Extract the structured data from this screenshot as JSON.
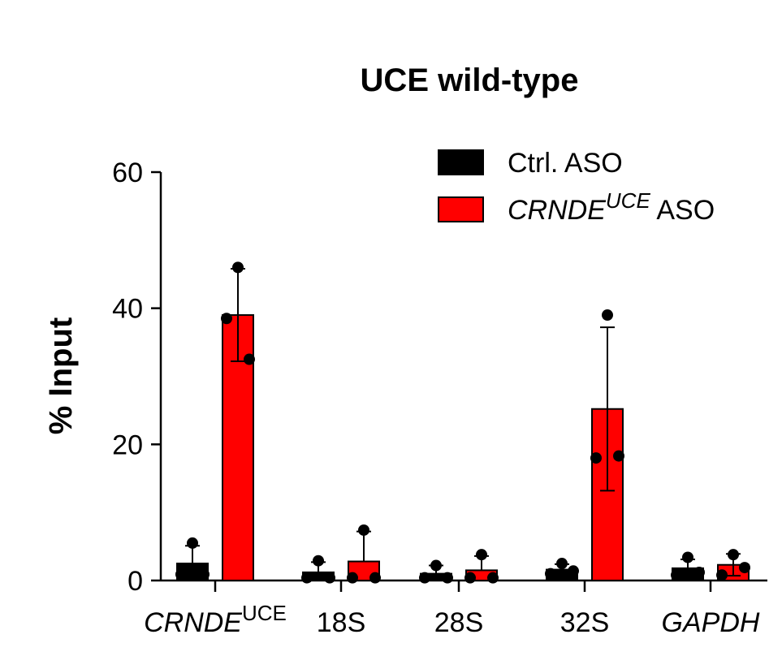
{
  "chart_data": {
    "type": "bar",
    "title": "UCE wild-type",
    "xlabel": "",
    "ylabel": "% Input",
    "ylim": [
      0,
      60
    ],
    "yticks": [
      "0",
      "20",
      "40",
      "60"
    ],
    "categories": [
      {
        "name": "CRNDE",
        "sup": "UCE",
        "italic": true
      },
      {
        "name": "18S",
        "sup": "",
        "italic": false
      },
      {
        "name": "28S",
        "sup": "",
        "italic": false
      },
      {
        "name": "32S",
        "sup": "",
        "italic": false
      },
      {
        "name": "GAPDH",
        "sup": "",
        "italic": true
      }
    ],
    "legend_position": "top-right",
    "series": [
      {
        "name": "Ctrl. ASO",
        "legend_parts": [
          {
            "text": "Ctrl. ASO",
            "italic": false,
            "sup": false
          }
        ],
        "color": "#000000",
        "values": [
          2.5,
          1.2,
          1.0,
          1.6,
          1.8
        ],
        "errors": [
          2.6,
          1.5,
          1.2,
          0.8,
          1.3
        ],
        "points": [
          [
            5.5,
            0.9,
            0.9
          ],
          [
            2.9,
            0.4,
            0.4
          ],
          [
            2.2,
            0.4,
            0.4
          ],
          [
            2.5,
            1.0,
            1.4
          ],
          [
            3.4,
            0.8,
            1.2
          ]
        ]
      },
      {
        "name": "CRNDE UCE ASO",
        "legend_parts": [
          {
            "text": "CRNDE",
            "italic": true,
            "sup": false
          },
          {
            "text": "UCE",
            "italic": true,
            "sup": true
          },
          {
            "text": " ASO",
            "italic": false,
            "sup": false
          }
        ],
        "color": "#ff0000",
        "values": [
          39.0,
          2.8,
          1.5,
          25.2,
          2.3
        ],
        "errors": [
          6.8,
          4.4,
          2.1,
          12.0,
          1.6
        ],
        "points": [
          [
            46.0,
            38.5,
            32.5
          ],
          [
            7.4,
            0.4,
            0.4
          ],
          [
            3.8,
            0.4,
            0.4
          ],
          [
            39.0,
            18.0,
            18.3
          ],
          [
            3.8,
            0.8,
            1.9
          ]
        ]
      }
    ]
  }
}
